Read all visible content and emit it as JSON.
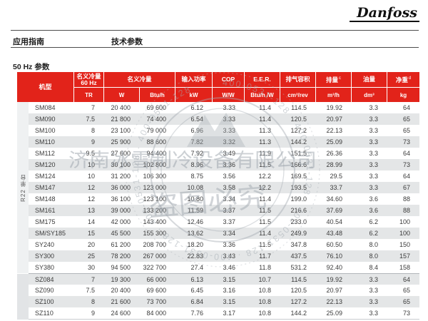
{
  "page": {
    "logo": "Danfoss",
    "nav_left": "应用指南",
    "nav_right": "技术参数",
    "section_title": "50 Hz 参数"
  },
  "colors": {
    "header_red": "#e2231a",
    "row_stripe": "#e4e6e7",
    "watermark_gray": "#a3abb2"
  },
  "table": {
    "group_r22_label": "R22 单台",
    "header": {
      "model": "机型",
      "cap60_line1": "名义冷量",
      "cap60_line2": "60 Hz",
      "cap60_unit": "TR",
      "cap": "名义冷量",
      "cap_unit_w": "W",
      "cap_unit_btu": "Btu/h",
      "power": "输入功率",
      "power_unit": "kW",
      "cop": "COP",
      "cop_unit": "W/W",
      "eer": "E.E.R.",
      "eer_unit": "Btu/h /W",
      "disp": "排气容积",
      "disp_unit": "cm³/rev",
      "flow": "排量",
      "flow_sup": "c",
      "flow_unit": "m³/h",
      "oil": "油量",
      "oil_unit": "dm³",
      "weight": "净重",
      "weight_sup": "d",
      "weight_unit": "kg"
    },
    "col_keys": [
      "tr",
      "w",
      "btu_h",
      "kw",
      "cop",
      "eer",
      "cm3_rev",
      "m3_h",
      "dm3",
      "kg"
    ],
    "rows": [
      {
        "group": "r22",
        "model": "SM084",
        "values": [
          "7",
          "20 400",
          "69 600",
          "6.12",
          "3.33",
          "11.4",
          "114.5",
          "19.92",
          "3.3",
          "64"
        ]
      },
      {
        "group": "r22",
        "model": "SM090",
        "values": [
          "7.5",
          "21 800",
          "74 400",
          "6.54",
          "3.33",
          "11.4",
          "120.5",
          "20.97",
          "3.3",
          "65"
        ]
      },
      {
        "group": "r22",
        "model": "SM100",
        "values": [
          "8",
          "23 100",
          "79 000",
          "6.96",
          "3.33",
          "11.3",
          "127.2",
          "22.13",
          "3.3",
          "65"
        ]
      },
      {
        "group": "r22",
        "model": "SM110",
        "values": [
          "9",
          "25 900",
          "88 600",
          "7.82",
          "3.32",
          "11.3",
          "144.2",
          "25.09",
          "3.3",
          "73"
        ]
      },
      {
        "group": "r22",
        "model": "SM112",
        "values": [
          "9.5",
          "27 600",
          "94 400",
          "7.92",
          "3.49",
          "11.9",
          "151.5",
          "26.36",
          "3.3",
          "64"
        ]
      },
      {
        "group": "r22",
        "model": "SM120",
        "values": [
          "10",
          "30 100",
          "102 800",
          "8.96",
          "3.36",
          "11.5",
          "166.6",
          "28.99",
          "3.3",
          "73"
        ]
      },
      {
        "group": "r22",
        "model": "SM124",
        "values": [
          "10",
          "31 200",
          "106 300",
          "8.75",
          "3.56",
          "12.2",
          "169.5",
          "29.5",
          "3.3",
          "64"
        ]
      },
      {
        "group": "r22",
        "model": "SM147",
        "values": [
          "12",
          "36 000",
          "123 000",
          "10.08",
          "3.58",
          "12.2",
          "193.5",
          "33.7",
          "3.3",
          "67"
        ]
      },
      {
        "group": "r22",
        "model": "SM148",
        "values": [
          "12",
          "36 100",
          "123 100",
          "10.80",
          "3.34",
          "11.4",
          "199.0",
          "34.60",
          "3.6",
          "88"
        ]
      },
      {
        "group": "r22",
        "model": "SM161",
        "values": [
          "13",
          "39 000",
          "133 200",
          "11.59",
          "3.37",
          "11.5",
          "216.6",
          "37.69",
          "3.6",
          "88"
        ]
      },
      {
        "group": "r22",
        "model": "SM175",
        "values": [
          "14",
          "42 000",
          "143 400",
          "12.46",
          "3.37",
          "11.5",
          "233.0",
          "40.54",
          "6.2",
          "100"
        ]
      },
      {
        "group": "r22",
        "model": "SM/SY185",
        "values": [
          "15",
          "45 500",
          "155 300",
          "13.62",
          "3.34",
          "11.4",
          "249.9",
          "43.48",
          "6.2",
          "100"
        ]
      },
      {
        "group": "r22",
        "model": "SY240",
        "values": [
          "20",
          "61 200",
          "208 700",
          "18.20",
          "3.36",
          "11.5",
          "347.8",
          "60.50",
          "8.0",
          "150"
        ]
      },
      {
        "group": "r22",
        "model": "SY300",
        "values": [
          "25",
          "78 200",
          "267 000",
          "22.83",
          "3.43",
          "11.7",
          "437.5",
          "76.10",
          "8.0",
          "157"
        ]
      },
      {
        "group": "r22",
        "model": "SY380",
        "values": [
          "30",
          "94 500",
          "322 700",
          "27.4",
          "3.46",
          "11.8",
          "531.2",
          "92.40",
          "8.4",
          "158"
        ]
      },
      {
        "group": "sz",
        "model": "SZ084",
        "values": [
          "7",
          "19 300",
          "66 000",
          "6.13",
          "3.15",
          "10.7",
          "114.5",
          "19.92",
          "3.3",
          "64"
        ]
      },
      {
        "group": "sz",
        "model": "SZ090",
        "values": [
          "7.5",
          "20 400",
          "69 600",
          "6.45",
          "3.16",
          "10.8",
          "120.5",
          "20.97",
          "3.3",
          "65"
        ]
      },
      {
        "group": "sz",
        "model": "SZ100",
        "values": [
          "8",
          "21 600",
          "73 700",
          "6.84",
          "3.15",
          "10.8",
          "127.2",
          "22.13",
          "3.3",
          "65"
        ]
      },
      {
        "group": "sz",
        "model": "SZ110",
        "values": [
          "9",
          "24 600",
          "84 000",
          "7.76",
          "3.17",
          "10.8",
          "144.2",
          "25.09",
          "3.3",
          "73"
        ]
      }
    ]
  },
  "watermark": {
    "company": "济南冰雪制冷设备有限公司",
    "warning": "盗图必究",
    "ring_text": "400-0531-128 · 400-0531-128 · 400-0531-128 · 400-0531-128 · 400-0531-128 · 400-0531-128"
  }
}
